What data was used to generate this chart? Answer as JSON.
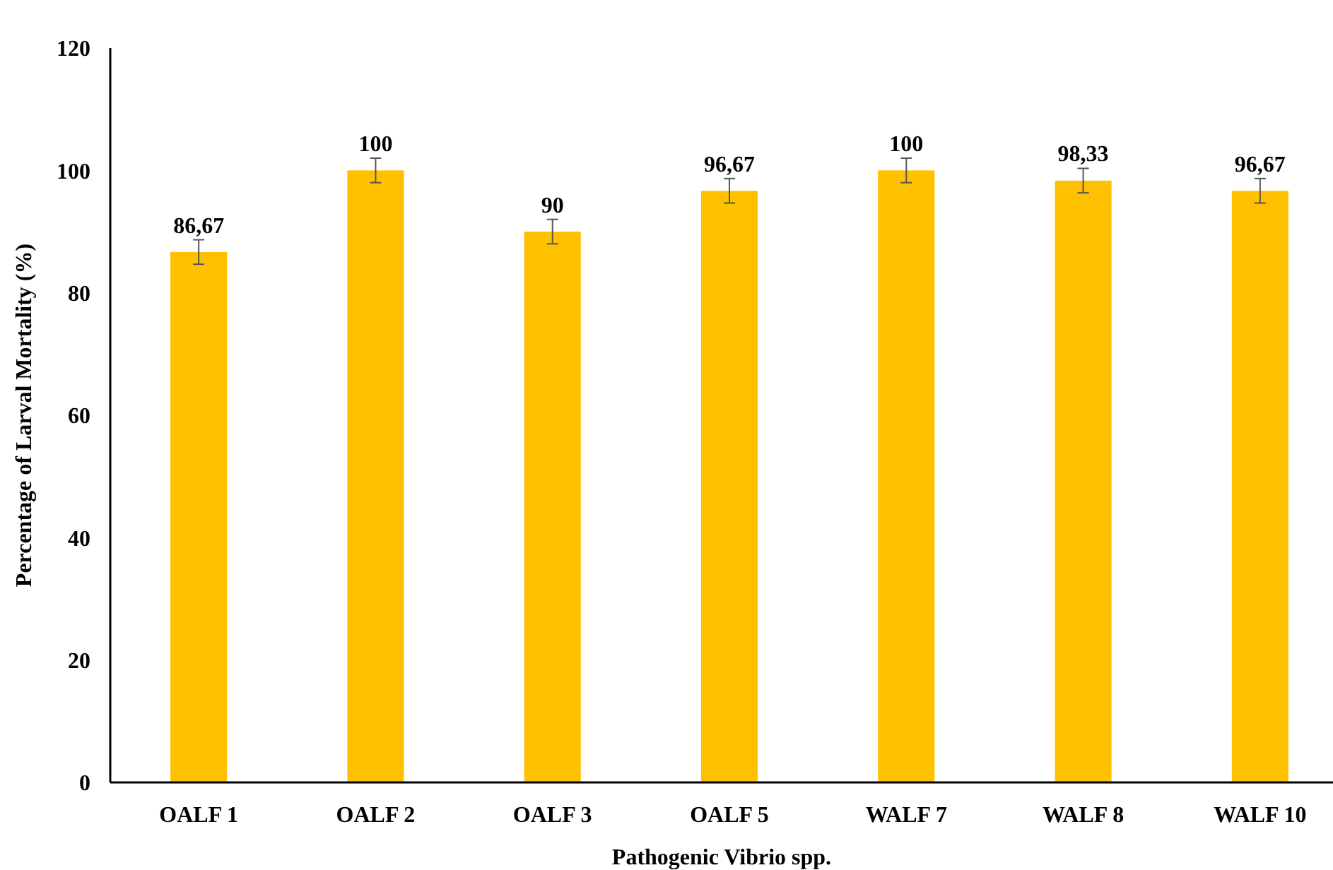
{
  "chart_data": {
    "type": "bar",
    "xlabel": "Pathogenic Vibrio spp.",
    "ylabel": "Percentage of Larval Mortality (%)",
    "categories": [
      "OALF 1",
      "OALF 2",
      "OALF 3",
      "OALF 5",
      "WALF 7",
      "WALF 8",
      "WALF 10"
    ],
    "values": [
      86.67,
      100,
      90,
      96.67,
      100,
      98.33,
      96.67
    ],
    "value_labels": [
      "86,67",
      "100",
      "90",
      "96,67",
      "100",
      "98,33",
      "96,67"
    ],
    "errors": [
      2,
      2,
      2,
      2,
      2,
      2,
      2
    ],
    "color": "#ffc000",
    "ylim": [
      0,
      120
    ],
    "yticks": [
      0,
      20,
      40,
      60,
      80,
      100,
      120
    ],
    "grid": false
  }
}
